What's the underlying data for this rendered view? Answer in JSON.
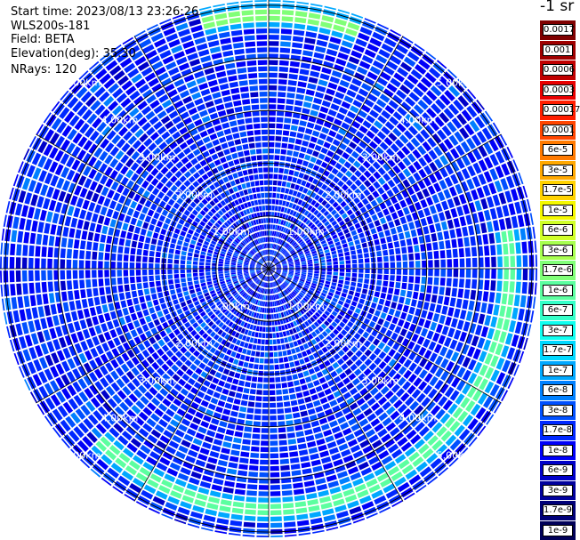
{
  "header": {
    "start_time_label": "Start time:",
    "start_time": "2023/08/13 23:26:26",
    "instrument": "WLS200s-181",
    "field_label": "Field:",
    "field": "BETA",
    "elevation_label": "Elevation(deg):",
    "elevation": "35.30",
    "nrays_label": "NRays:",
    "nrays": "120"
  },
  "colorbar": {
    "unit": "-1 sr",
    "levels": [
      {
        "label": "0.0017",
        "color": "#7f0000"
      },
      {
        "label": "0.001",
        "color": "#9e0000"
      },
      {
        "label": "0.0006",
        "color": "#c00000"
      },
      {
        "label": "0.0003",
        "color": "#e80000"
      },
      {
        "label": "0.00017",
        "color": "#ff1e00"
      },
      {
        "label": "0.0001",
        "color": "#ff4600"
      },
      {
        "label": "6e-5",
        "color": "#ff7a00"
      },
      {
        "label": "3e-5",
        "color": "#ffa800"
      },
      {
        "label": "1.7e-5",
        "color": "#ffd200"
      },
      {
        "label": "1e-5",
        "color": "#f4f800"
      },
      {
        "label": "6e-6",
        "color": "#d0ff28"
      },
      {
        "label": "3e-6",
        "color": "#a8ff50"
      },
      {
        "label": "1.7e-6",
        "color": "#80ff78"
      },
      {
        "label": "1e-6",
        "color": "#5cffa0"
      },
      {
        "label": "6e-7",
        "color": "#34ffc8"
      },
      {
        "label": "3e-7",
        "color": "#10fff0"
      },
      {
        "label": "1.7e-7",
        "color": "#00d8ff"
      },
      {
        "label": "1e-7",
        "color": "#00a8ff"
      },
      {
        "label": "6e-8",
        "color": "#0080ff"
      },
      {
        "label": "3e-8",
        "color": "#0050ff"
      },
      {
        "label": "1.7e-8",
        "color": "#0028ff"
      },
      {
        "label": "1e-8",
        "color": "#0000f8"
      },
      {
        "label": "6e-9",
        "color": "#0000c8"
      },
      {
        "label": "3e-9",
        "color": "#00009c"
      },
      {
        "label": "1.7e-9",
        "color": "#000078"
      },
      {
        "label": "1e-9",
        "color": "#000058"
      }
    ]
  },
  "chart_data": {
    "type": "heatmap",
    "projection": "polar (PPI scan)",
    "field": "BETA",
    "elevation_deg": 35.3,
    "n_rays": 120,
    "max_range_km": 5.1,
    "range_rings_km": [
      1.0,
      2.0,
      3.0,
      4.0,
      5.0
    ],
    "ring_labels": [
      "1.00km",
      "2.00km",
      "3.00km",
      "4.00km",
      "5.00km"
    ],
    "radial_spokes_deg": [
      0,
      30,
      60,
      90,
      120,
      150,
      180,
      210,
      240,
      270,
      300,
      330
    ],
    "color_scale": "log",
    "color_range": [
      1e-09,
      0.0017
    ],
    "colorbar_ticks": [
      "1e-9",
      "1.7e-9",
      "3e-9",
      "6e-9",
      "1e-8",
      "1.7e-8",
      "3e-8",
      "6e-8",
      "1e-7",
      "1.7e-7",
      "3e-7",
      "6e-7",
      "1e-6",
      "1.7e-6",
      "3e-6",
      "6e-6",
      "1e-5",
      "1.7e-5",
      "3e-5",
      "6e-5",
      "0.0001",
      "0.00017",
      "0.0003",
      "0.0006",
      "0.001",
      "0.0017"
    ],
    "background_beta": 2.5e-08,
    "features": [
      {
        "range_km": 4.55,
        "from_azimuth_deg": 80,
        "to_azimuth_deg": 225,
        "beta": 1.5e-06
      },
      {
        "range_km": 4.85,
        "from_azimuth_deg": 345,
        "to_azimuth_deg": 20,
        "beta": 2e-06
      }
    ]
  }
}
